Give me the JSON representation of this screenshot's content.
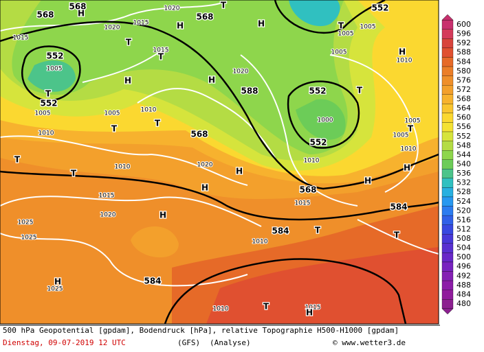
{
  "map": {
    "labels": [
      "568",
      "568",
      "H",
      "1020",
      "1015",
      "1020",
      "568",
      "T",
      "H",
      "H",
      "552",
      "T",
      "1005",
      "1005",
      "1015",
      "T",
      "1015",
      "T",
      "552",
      "1005",
      "H",
      "H",
      "1020",
      "588",
      "552",
      "T",
      "H",
      "1010",
      "1005",
      "552",
      "T",
      "1005",
      "1005",
      "1010",
      "T",
      "T",
      "1000",
      "1005",
      "T",
      "1005",
      "1010",
      "568",
      "552",
      "1010",
      "T",
      "1010",
      "1020",
      "H",
      "1010",
      "H",
      "T",
      "H",
      "568",
      "H",
      "1015",
      "1015",
      "584",
      "1020",
      "H",
      "1025",
      "584",
      "T",
      "T",
      "1025",
      "1010",
      "584",
      "H",
      "1025",
      "1010",
      "T",
      "1015",
      "H"
    ]
  },
  "colorbar": {
    "levels": [
      600,
      596,
      592,
      588,
      584,
      580,
      576,
      572,
      568,
      564,
      560,
      556,
      552,
      548,
      544,
      540,
      536,
      532,
      528,
      524,
      520,
      516,
      512,
      508,
      504,
      500,
      496,
      492,
      488,
      484,
      480
    ],
    "colors": [
      "#c8306e",
      "#d43a5a",
      "#d8443c",
      "#e05030",
      "#e66a28",
      "#eb7e28",
      "#ef8f2a",
      "#f3a02c",
      "#f7b22e",
      "#f9c52f",
      "#fbd830",
      "#f4e234",
      "#d6e43c",
      "#b4dc44",
      "#8ed64c",
      "#6ccc58",
      "#4cc48a",
      "#30c0c0",
      "#28b0e0",
      "#2898f0",
      "#2c7cf0",
      "#3060e8",
      "#3848e0",
      "#4838d8",
      "#5830d0",
      "#6828c8",
      "#7824c0",
      "#8420b4",
      "#8c1ca8",
      "#901c9c",
      "#8c2090"
    ]
  },
  "footer": {
    "description": "500 hPa Geopotential [gpdam], Bodendruck [hPa], relative Topographie H500-H1000 [gpdam]",
    "date": "Dienstag, 09-07-2019  12 UTC",
    "model": "(GFS)",
    "run": "(Analyse)",
    "credit": "© www.wetter3.de"
  }
}
